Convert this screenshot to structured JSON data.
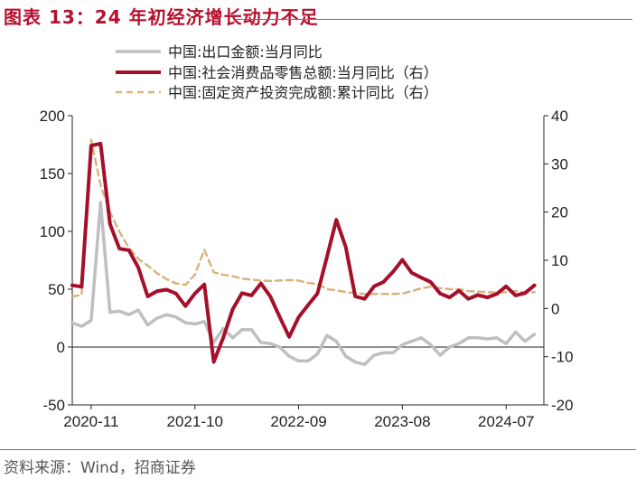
{
  "title": "图表 13：24 年初经济增长动力不足",
  "source": "资料来源：Wind，招商证券",
  "chart_data": {
    "type": "line",
    "x_tick_labels": [
      "2020-11",
      "2021-10",
      "2022-09",
      "2023-08",
      "2024-07"
    ],
    "x_range": [
      "2020-09",
      "2024-11"
    ],
    "y_left": {
      "lim": [
        -50,
        200
      ],
      "ticks": [
        "-50",
        "0",
        "50",
        "100",
        "150",
        "200"
      ]
    },
    "y_right": {
      "lim": [
        -20,
        40
      ],
      "ticks": [
        "-20",
        "-10",
        "0",
        "10",
        "20",
        "30",
        "40"
      ]
    },
    "legend_position": "top-center",
    "series": [
      {
        "name": "中国:出口金额:当月同比",
        "axis": "left",
        "color": "#bfbfbf",
        "style": "solid",
        "x": [
          "2020-09",
          "2020-10",
          "2020-11",
          "2020-12",
          "2021-01",
          "2021-02",
          "2021-03",
          "2021-04",
          "2021-05",
          "2021-06",
          "2021-07",
          "2021-08",
          "2021-09",
          "2021-10",
          "2021-11",
          "2021-12",
          "2022-01",
          "2022-02",
          "2022-03",
          "2022-04",
          "2022-05",
          "2022-06",
          "2022-07",
          "2022-08",
          "2022-09",
          "2022-10",
          "2022-11",
          "2022-12",
          "2023-01",
          "2023-02",
          "2023-03",
          "2023-04",
          "2023-05",
          "2023-06",
          "2023-07",
          "2023-08",
          "2023-09",
          "2023-10",
          "2023-11",
          "2023-12",
          "2024-01",
          "2024-02",
          "2024-03",
          "2024-04",
          "2024-05",
          "2024-06",
          "2024-07",
          "2024-08",
          "2024-09",
          "2024-10"
        ],
        "values": [
          21,
          18,
          23,
          125,
          30,
          31,
          28,
          32,
          19,
          25,
          28,
          26,
          21,
          20,
          22,
          4,
          16,
          8,
          15,
          15,
          4,
          3,
          0,
          -8,
          -12,
          -12,
          -6,
          10,
          5,
          -8,
          -13,
          -15,
          -7,
          -5,
          -5,
          2,
          5,
          8,
          2,
          -7,
          0,
          3,
          8,
          8,
          7,
          8,
          3,
          13,
          5,
          11
        ]
      },
      {
        "name": "中国:社会消费品零售总额:当月同比（右）",
        "axis": "right",
        "color": "#a50f2a",
        "style": "solid",
        "x": [
          "2020-09",
          "2020-10",
          "2020-11",
          "2020-12",
          "2021-01",
          "2021-02",
          "2021-03",
          "2021-04",
          "2021-05",
          "2021-06",
          "2021-07",
          "2021-08",
          "2021-09",
          "2021-10",
          "2021-11",
          "2021-12",
          "2022-01",
          "2022-02",
          "2022-03",
          "2022-04",
          "2022-05",
          "2022-06",
          "2022-07",
          "2022-08",
          "2022-09",
          "2022-10",
          "2022-11",
          "2022-12",
          "2023-01",
          "2023-02",
          "2023-03",
          "2023-04",
          "2023-05",
          "2023-06",
          "2023-07",
          "2023-08",
          "2023-09",
          "2023-10",
          "2023-11",
          "2023-12",
          "2024-01",
          "2024-02",
          "2024-03",
          "2024-04",
          "2024-05",
          "2024-06",
          "2024-07",
          "2024-08",
          "2024-09",
          "2024-10"
        ],
        "values": [
          4.8,
          4.5,
          33.8,
          34.2,
          17.5,
          12.4,
          12.1,
          8.5,
          2.5,
          3.6,
          3.9,
          3.1,
          0.5,
          3.1,
          5.0,
          -11.1,
          -6.1,
          -0.2,
          3.2,
          2.7,
          5.2,
          2.5,
          -1.8,
          -5.9,
          -1.8,
          0.7,
          3.1,
          10.7,
          18.4,
          12.7,
          2.5,
          2.0,
          4.6,
          5.5,
          7.6,
          10.1,
          7.4,
          6.4,
          5.5,
          3.1,
          2.3,
          3.7,
          2.0,
          2.8,
          2.3,
          3.0,
          4.6,
          2.7,
          3.2,
          4.8
        ]
      },
      {
        "name": "中国:固定资产投资完成额:累计同比（右）",
        "axis": "right",
        "color": "#d9b37f",
        "style": "dashed",
        "x": [
          "2020-09",
          "2020-10",
          "2020-11",
          "2020-12",
          "2021-01",
          "2021-02",
          "2021-03",
          "2021-04",
          "2021-05",
          "2021-06",
          "2021-07",
          "2021-08",
          "2021-09",
          "2021-10",
          "2021-11",
          "2021-12",
          "2022-01",
          "2022-02",
          "2022-03",
          "2022-04",
          "2022-05",
          "2022-06",
          "2022-07",
          "2022-08",
          "2022-09",
          "2022-10",
          "2022-11",
          "2022-12",
          "2023-01",
          "2023-02",
          "2023-03",
          "2023-04",
          "2023-05",
          "2023-06",
          "2023-07",
          "2023-08",
          "2023-09",
          "2023-10",
          "2023-11",
          "2023-12",
          "2024-01",
          "2024-02",
          "2024-03",
          "2024-04",
          "2024-05",
          "2024-06",
          "2024-07",
          "2024-08",
          "2024-09",
          "2024-10"
        ],
        "values": [
          2.5,
          2.8,
          35.0,
          25.6,
          20.0,
          15.9,
          12.6,
          10.3,
          8.9,
          7.3,
          6.1,
          5.2,
          4.9,
          7.0,
          12.2,
          7.5,
          7.0,
          6.7,
          6.2,
          6.0,
          5.8,
          5.7,
          5.8,
          5.9,
          5.8,
          5.3,
          5.1,
          4.0,
          3.8,
          3.4,
          3.2,
          3.0,
          3.0,
          3.0,
          3.0,
          3.1,
          3.6,
          4.2,
          4.5,
          4.2,
          4.0,
          4.0,
          3.6,
          3.5,
          3.4,
          3.3,
          3.4,
          3.6,
          3.3,
          3.4
        ]
      }
    ]
  }
}
